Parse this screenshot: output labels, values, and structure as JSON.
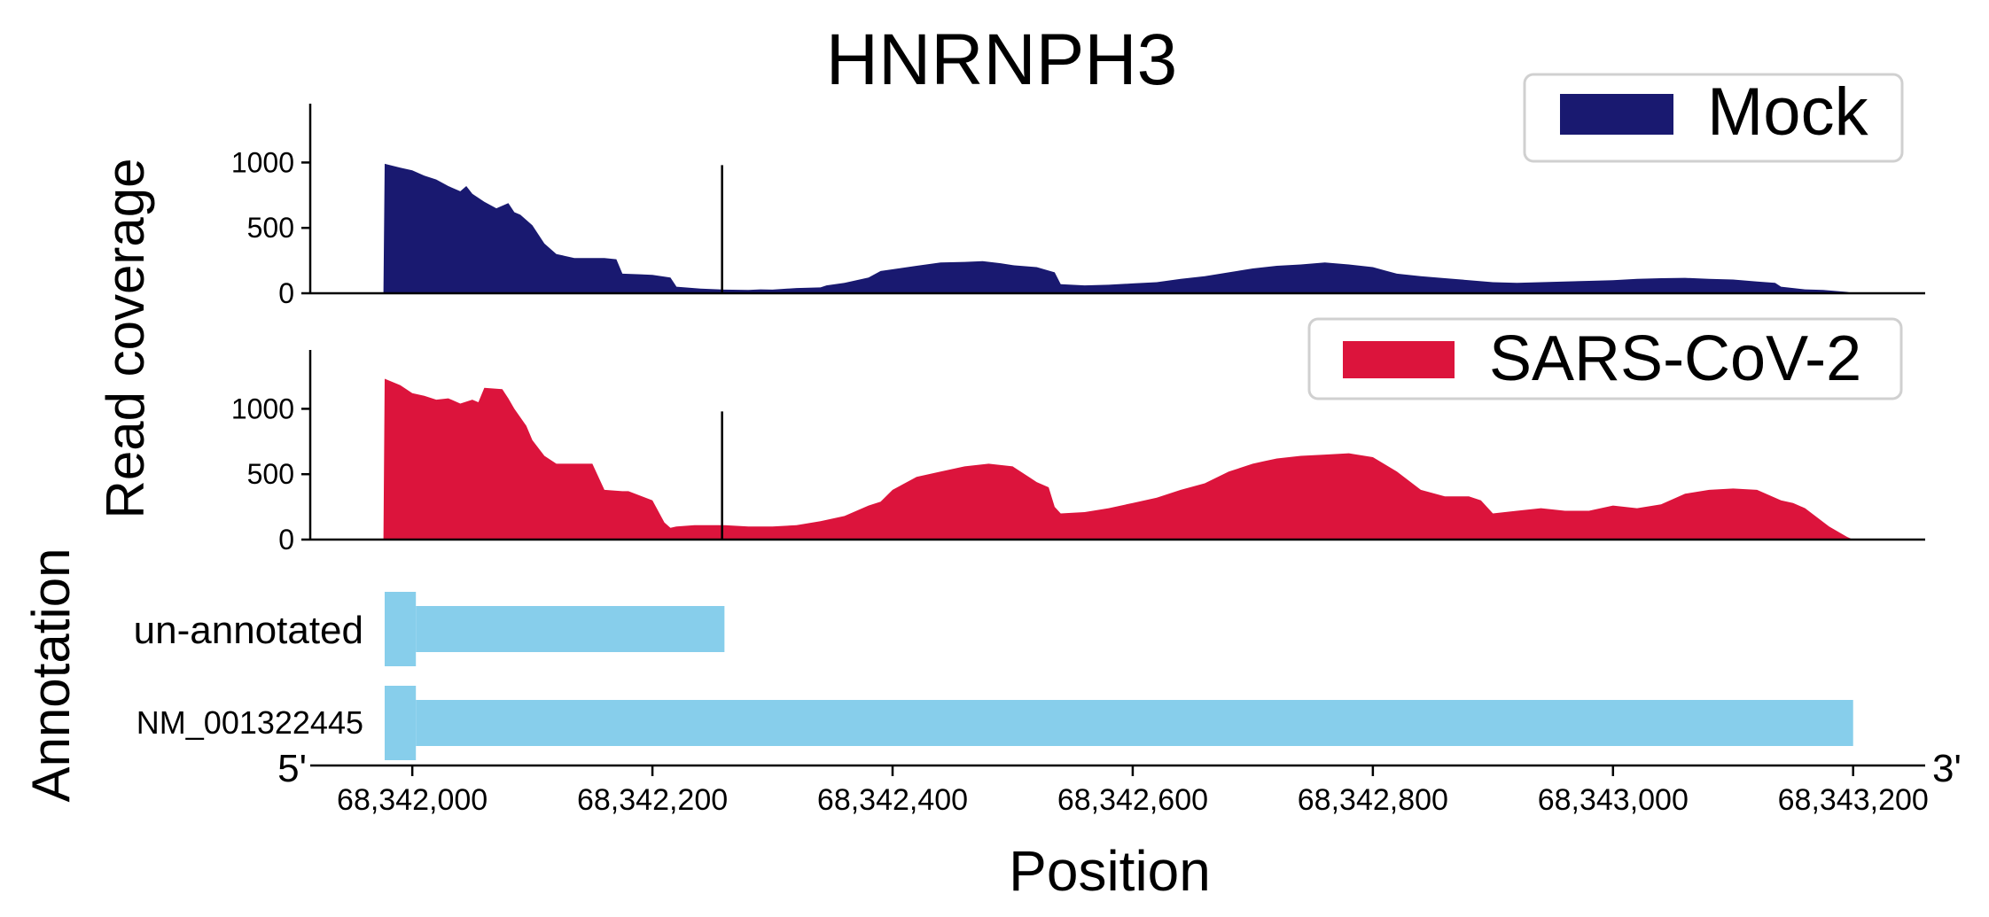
{
  "chart_data": {
    "type": "area",
    "title": "HNRNPH3",
    "xlabel": "Position",
    "ylabel": "Read coverage",
    "annotation_label": "Annotation",
    "xlim": [
      68341915,
      68343260
    ],
    "xticks": [
      68342000,
      68342200,
      68342400,
      68342600,
      68342800,
      68343000,
      68343200
    ],
    "xtick_labels": [
      "68,342,000",
      "68,342,200",
      "68,342,400",
      "68,342,600",
      "68,342,800",
      "68,343,000",
      "68,343,200"
    ],
    "end_labels": {
      "left": "5'",
      "right": "3'"
    },
    "ylim": [
      0,
      1450
    ],
    "yticks": [
      0,
      500,
      1000
    ],
    "ytick_labels": [
      "0",
      "500",
      "1000"
    ],
    "marker_position": 68342258,
    "legend_placement": "top-right",
    "series": [
      {
        "name": "Mock",
        "color": "#191970",
        "x": [
          68341976,
          68341977,
          68341990,
          68342000,
          68342010,
          68342020,
          68342030,
          68342040,
          68342045,
          68342050,
          68342060,
          68342070,
          68342080,
          68342085,
          68342090,
          68342100,
          68342110,
          68342120,
          68342135,
          68342140,
          68342160,
          68342170,
          68342175,
          68342190,
          68342200,
          68342215,
          68342220,
          68342240,
          68342260,
          68342280,
          68342290,
          68342300,
          68342320,
          68342340,
          68342345,
          68342360,
          68342380,
          68342390,
          68342420,
          68342440,
          68342460,
          68342475,
          68342490,
          68342500,
          68342520,
          68342535,
          68342540,
          68342560,
          68342580,
          68342600,
          68342620,
          68342640,
          68342660,
          68342680,
          68342700,
          68342720,
          68342740,
          68342760,
          68342780,
          68342800,
          68342810,
          68342820,
          68342840,
          68342860,
          68342880,
          68342900,
          68342920,
          68342940,
          68342960,
          68342980,
          68343000,
          68343020,
          68343040,
          68343060,
          68343080,
          68343100,
          68343120,
          68343135,
          68343140,
          68343150,
          68343160,
          68343175,
          68343195,
          68343200
        ],
        "values": [
          0,
          990,
          960,
          940,
          900,
          870,
          820,
          780,
          820,
          760,
          700,
          650,
          690,
          620,
          600,
          520,
          380,
          300,
          270,
          270,
          270,
          260,
          150,
          145,
          140,
          120,
          50,
          35,
          28,
          25,
          30,
          28,
          40,
          45,
          60,
          80,
          120,
          170,
          210,
          235,
          240,
          245,
          230,
          215,
          200,
          160,
          70,
          60,
          65,
          75,
          85,
          110,
          130,
          160,
          190,
          210,
          220,
          235,
          220,
          200,
          175,
          150,
          130,
          115,
          100,
          85,
          80,
          85,
          90,
          95,
          100,
          110,
          115,
          118,
          110,
          105,
          90,
          80,
          50,
          40,
          30,
          25,
          10,
          0
        ]
      },
      {
        "name": "SARS-CoV-2",
        "color": "#DC143C",
        "x": [
          68341976,
          68341977,
          68341990,
          68342000,
          68342010,
          68342020,
          68342030,
          68342040,
          68342050,
          68342055,
          68342060,
          68342075,
          68342080,
          68342085,
          68342095,
          68342100,
          68342110,
          68342120,
          68342135,
          68342150,
          68342160,
          68342175,
          68342180,
          68342200,
          68342210,
          68342215,
          68342220,
          68342235,
          68342260,
          68342280,
          68342300,
          68342320,
          68342340,
          68342360,
          68342380,
          68342390,
          68342400,
          68342420,
          68342440,
          68342460,
          68342480,
          68342500,
          68342515,
          68342520,
          68342530,
          68342535,
          68342540,
          68342560,
          68342580,
          68342600,
          68342620,
          68342640,
          68342660,
          68342680,
          68342700,
          68342710,
          68342720,
          68342740,
          68342760,
          68342780,
          68342800,
          68342820,
          68342840,
          68342860,
          68342880,
          68342890,
          68342900,
          68342920,
          68342940,
          68342960,
          68342980,
          68343000,
          68343010,
          68343020,
          68343040,
          68343060,
          68343080,
          68343100,
          68343120,
          68343140,
          68343150,
          68343160,
          68343180,
          68343195,
          68343200
        ],
        "values": [
          0,
          1230,
          1180,
          1120,
          1100,
          1070,
          1080,
          1040,
          1070,
          1050,
          1160,
          1150,
          1080,
          1000,
          870,
          760,
          640,
          580,
          580,
          580,
          380,
          370,
          370,
          300,
          130,
          90,
          100,
          110,
          110,
          100,
          100,
          110,
          140,
          180,
          260,
          290,
          380,
          480,
          520,
          560,
          580,
          560,
          470,
          440,
          400,
          250,
          200,
          210,
          240,
          280,
          320,
          380,
          430,
          520,
          580,
          600,
          620,
          640,
          650,
          660,
          630,
          520,
          380,
          330,
          330,
          300,
          200,
          220,
          240,
          220,
          220,
          260,
          250,
          240,
          270,
          350,
          380,
          390,
          380,
          300,
          280,
          240,
          100,
          20,
          0
        ]
      }
    ],
    "annotation_tracks": [
      {
        "name": "un-annotated",
        "color": "#87CEEB",
        "start": 68341977,
        "thick_start": 68342003,
        "end": 68342260
      },
      {
        "name": "NM_001322445",
        "color": "#87CEEB",
        "start": 68341977,
        "thick_start": 68342003,
        "end": 68343200
      }
    ]
  }
}
